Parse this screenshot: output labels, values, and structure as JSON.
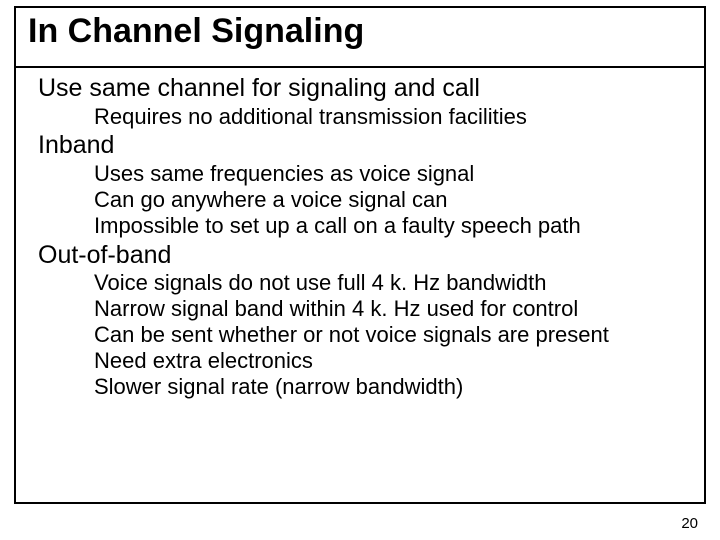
{
  "title": "In Channel Signaling",
  "page_number": "20",
  "colors": {
    "text": "#000000",
    "background": "#ffffff",
    "border": "#000000"
  },
  "typography": {
    "title_fontsize": 34,
    "lvl1_fontsize": 25,
    "lvl2_fontsize": 22
  },
  "sections": [
    {
      "heading": "Use same channel for signaling and call",
      "items": [
        "Requires no additional transmission facilities"
      ]
    },
    {
      "heading": "Inband",
      "items": [
        "Uses same frequencies as voice signal",
        "Can go anywhere a voice signal can",
        "Impossible to set up a call on a faulty speech path"
      ]
    },
    {
      "heading": "Out-of-band",
      "items": [
        "Voice signals do not use full 4 k. Hz bandwidth",
        "Narrow signal band within 4 k. Hz used for control",
        "Can be sent whether or not voice signals are present",
        "Need extra electronics",
        "Slower signal rate (narrow bandwidth)"
      ]
    }
  ]
}
